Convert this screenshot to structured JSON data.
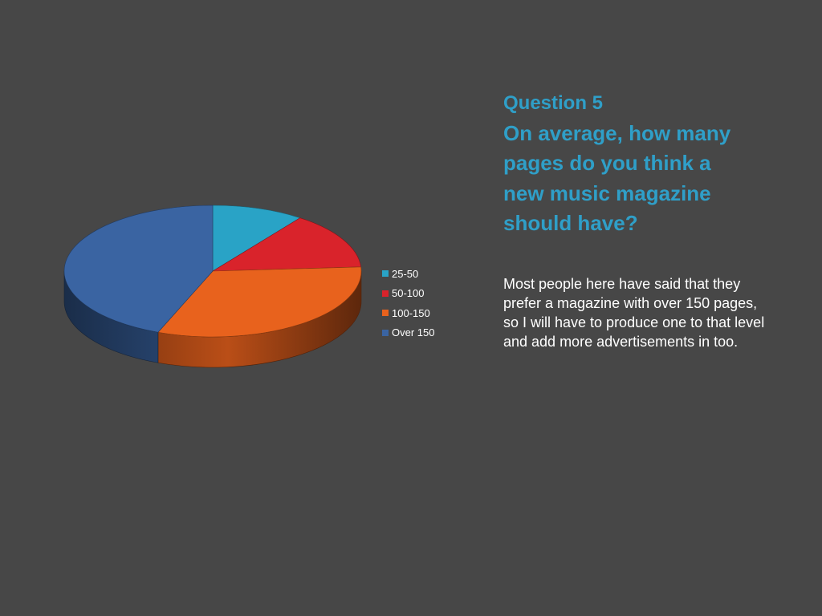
{
  "slide": {
    "background": "#474747",
    "title_color": "#2f9fc8",
    "question_number": "Question 5",
    "question_text": "On average, how many pages do you think a new music magazine should have?",
    "body_text": "Most people here have said that they prefer a magazine with over 150 pages, so I will have to produce one to that level and add more advertisements in too."
  },
  "chart_data": {
    "type": "pie",
    "style": "3d",
    "legend_position": "right",
    "categories": [
      "25-50",
      "50-100",
      "100-150",
      "Over 150"
    ],
    "values": [
      10,
      14,
      32,
      44
    ],
    "colors": [
      "#29a3c6",
      "#d9232b",
      "#e8621d",
      "#3a64a2"
    ]
  }
}
